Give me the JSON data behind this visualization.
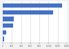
{
  "values": [
    13000,
    11000,
    2400,
    2200,
    800,
    300
  ],
  "bar_color": "#4472c4",
  "xlim": [
    0,
    14000
  ],
  "xtick_values": [
    0,
    2000,
    4000,
    6000,
    8000,
    10000,
    12000,
    14000
  ],
  "background_color": "#f2f2f2",
  "plot_bg_color": "#ffffff",
  "grid_color": "#cccccc",
  "n_bars": 6
}
